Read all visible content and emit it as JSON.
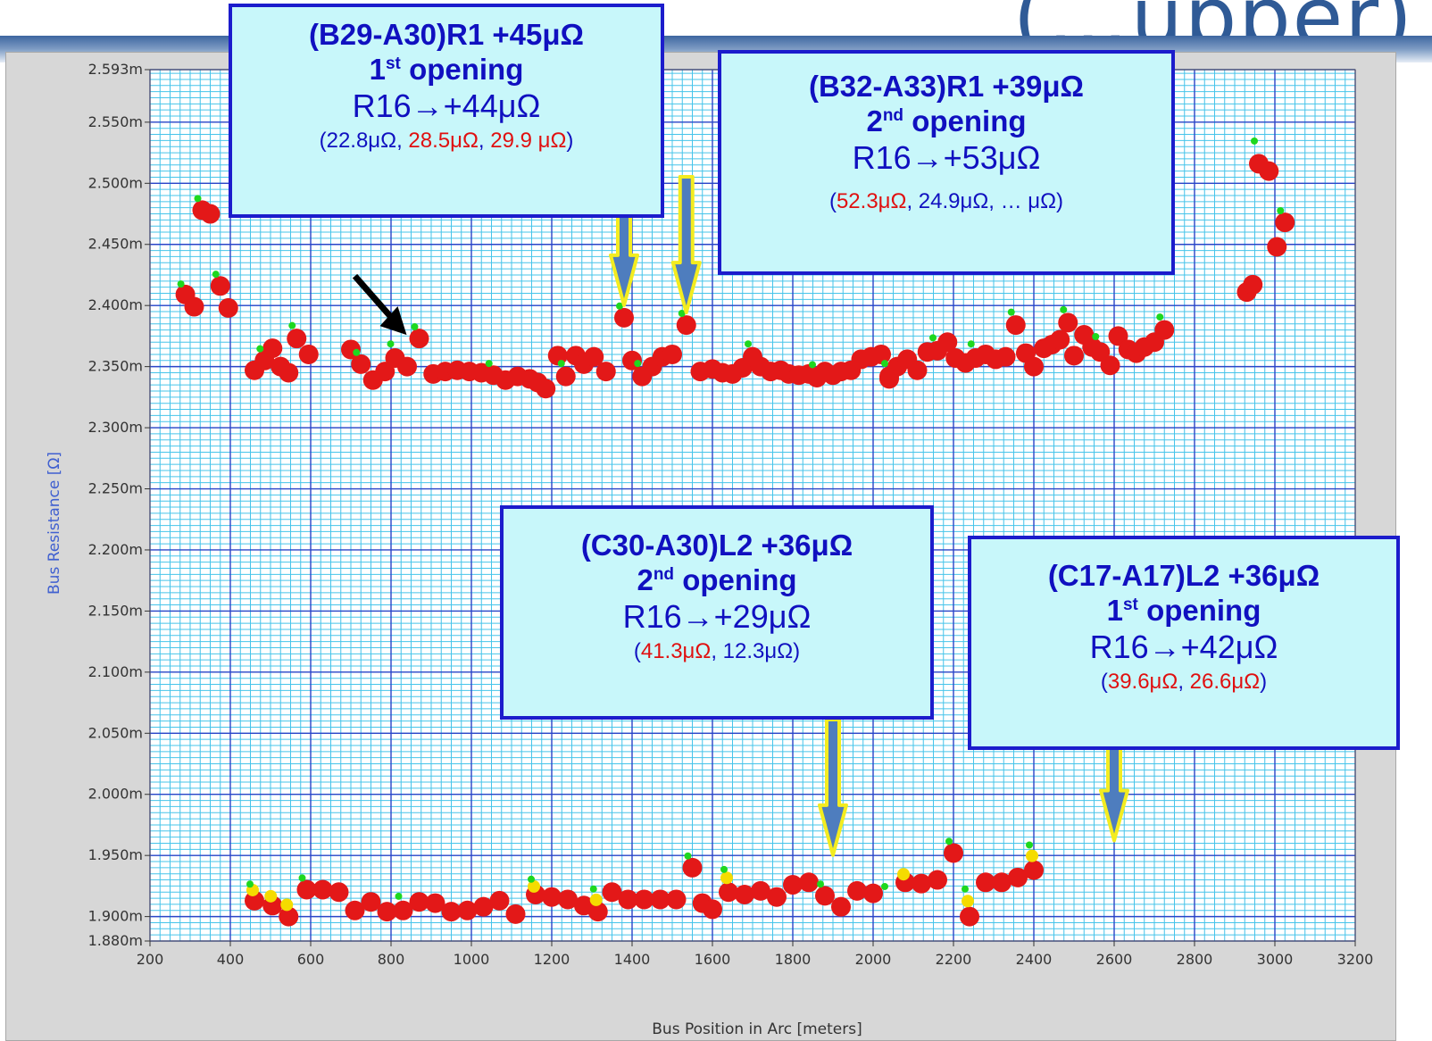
{
  "slide": {
    "title_fragment": "(…upper)"
  },
  "chart_data": {
    "type": "scatter",
    "title": "",
    "xlabel": "Bus Position in Arc [meters]",
    "ylabel": "Bus Resistance [Ω]",
    "xlim": [
      200,
      3200
    ],
    "ylim": [
      1.88,
      2.593
    ],
    "grid": true,
    "x_ticks": [
      200,
      400,
      600,
      800,
      1000,
      1200,
      1400,
      1600,
      1800,
      2000,
      2200,
      2400,
      2600,
      2800,
      3000,
      3200
    ],
    "y_ticks": [
      {
        "v": 1.88,
        "label": "1.880m"
      },
      {
        "v": 1.9,
        "label": "1.900m"
      },
      {
        "v": 1.95,
        "label": "1.950m"
      },
      {
        "v": 2.0,
        "label": "2.000m"
      },
      {
        "v": 2.05,
        "label": "2.050m"
      },
      {
        "v": 2.1,
        "label": "2.100m"
      },
      {
        "v": 2.15,
        "label": "2.150m"
      },
      {
        "v": 2.2,
        "label": "2.200m"
      },
      {
        "v": 2.25,
        "label": "2.250m"
      },
      {
        "v": 2.3,
        "label": "2.300m"
      },
      {
        "v": 2.35,
        "label": "2.350m"
      },
      {
        "v": 2.4,
        "label": "2.400m"
      },
      {
        "v": 2.45,
        "label": "2.450m"
      },
      {
        "v": 2.5,
        "label": "2.500m"
      },
      {
        "v": 2.55,
        "label": "2.550m"
      },
      {
        "v": 2.593,
        "label": "2.593m"
      }
    ],
    "series": [
      {
        "color": "#e31818",
        "points": [
          [
            288,
            2.409
          ],
          [
            310,
            2.399
          ],
          [
            330,
            2.478
          ],
          [
            350,
            2.475
          ],
          [
            375,
            2.416
          ],
          [
            395,
            2.398
          ],
          [
            460,
            2.347
          ],
          [
            485,
            2.355
          ],
          [
            505,
            2.365
          ],
          [
            525,
            2.35
          ],
          [
            545,
            2.345
          ],
          [
            565,
            2.373
          ],
          [
            595,
            2.36
          ],
          [
            700,
            2.364
          ],
          [
            725,
            2.352
          ],
          [
            755,
            2.339
          ],
          [
            785,
            2.346
          ],
          [
            810,
            2.357
          ],
          [
            840,
            2.35
          ],
          [
            870,
            2.373
          ],
          [
            905,
            2.344
          ],
          [
            935,
            2.346
          ],
          [
            965,
            2.347
          ],
          [
            995,
            2.346
          ],
          [
            1025,
            2.345
          ],
          [
            1055,
            2.343
          ],
          [
            1085,
            2.339
          ],
          [
            1115,
            2.342
          ],
          [
            1145,
            2.34
          ],
          [
            1165,
            2.337
          ],
          [
            1185,
            2.332
          ],
          [
            1215,
            2.359
          ],
          [
            1235,
            2.342
          ],
          [
            1260,
            2.359
          ],
          [
            1280,
            2.352
          ],
          [
            1305,
            2.358
          ],
          [
            1335,
            2.346
          ],
          [
            1380,
            2.39
          ],
          [
            1400,
            2.355
          ],
          [
            1425,
            2.342
          ],
          [
            1450,
            2.35
          ],
          [
            1475,
            2.358
          ],
          [
            1500,
            2.36
          ],
          [
            1535,
            2.384
          ],
          [
            1570,
            2.346
          ],
          [
            1600,
            2.348
          ],
          [
            1625,
            2.345
          ],
          [
            1650,
            2.344
          ],
          [
            1675,
            2.349
          ],
          [
            1700,
            2.358
          ],
          [
            1720,
            2.35
          ],
          [
            1745,
            2.346
          ],
          [
            1770,
            2.347
          ],
          [
            1790,
            2.344
          ],
          [
            1815,
            2.343
          ],
          [
            1840,
            2.344
          ],
          [
            1860,
            2.341
          ],
          [
            1880,
            2.346
          ],
          [
            1900,
            2.343
          ],
          [
            1920,
            2.346
          ],
          [
            1945,
            2.347
          ],
          [
            1970,
            2.356
          ],
          [
            1995,
            2.358
          ],
          [
            2020,
            2.36
          ],
          [
            2040,
            2.342
          ],
          [
            2060,
            2.35
          ],
          [
            2085,
            2.356
          ],
          [
            2110,
            2.347
          ],
          [
            2135,
            2.362
          ],
          [
            2160,
            2.363
          ],
          [
            2185,
            2.37
          ],
          [
            2205,
            2.357
          ],
          [
            2230,
            2.353
          ],
          [
            2255,
            2.357
          ],
          [
            2280,
            2.36
          ],
          [
            2305,
            2.356
          ],
          [
            2330,
            2.358
          ],
          [
            2355,
            2.384
          ],
          [
            2380,
            2.361
          ],
          [
            2400,
            2.35
          ],
          [
            2425,
            2.365
          ],
          [
            2445,
            2.368
          ],
          [
            2465,
            2.372
          ],
          [
            2485,
            2.386
          ],
          [
            2500,
            2.359
          ],
          [
            2525,
            2.376
          ],
          [
            2545,
            2.366
          ],
          [
            2565,
            2.362
          ],
          [
            2590,
            2.351
          ],
          [
            2610,
            2.375
          ],
          [
            2635,
            2.364
          ],
          [
            2655,
            2.361
          ],
          [
            2675,
            2.366
          ],
          [
            2700,
            2.37
          ],
          [
            2725,
            2.38
          ],
          [
            2930,
            2.411
          ],
          [
            2945,
            2.417
          ],
          [
            2960,
            2.516
          ],
          [
            2985,
            2.51
          ],
          [
            3005,
            2.448
          ],
          [
            3025,
            2.468
          ],
          [
            460,
            1.913
          ],
          [
            505,
            1.909
          ],
          [
            545,
            1.9
          ],
          [
            590,
            1.922
          ],
          [
            630,
            1.922
          ],
          [
            670,
            1.92
          ],
          [
            710,
            1.905
          ],
          [
            750,
            1.912
          ],
          [
            790,
            1.904
          ],
          [
            830,
            1.905
          ],
          [
            870,
            1.912
          ],
          [
            910,
            1.911
          ],
          [
            950,
            1.904
          ],
          [
            990,
            1.905
          ],
          [
            1030,
            1.908
          ],
          [
            1070,
            1.913
          ],
          [
            1110,
            1.902
          ],
          [
            1160,
            1.918
          ],
          [
            1200,
            1.916
          ],
          [
            1240,
            1.914
          ],
          [
            1280,
            1.909
          ],
          [
            1315,
            1.904
          ],
          [
            1350,
            1.92
          ],
          [
            1390,
            1.914
          ],
          [
            1430,
            1.914
          ],
          [
            1470,
            1.914
          ],
          [
            1510,
            1.914
          ],
          [
            1550,
            1.94
          ],
          [
            1575,
            1.911
          ],
          [
            1600,
            1.906
          ],
          [
            1640,
            1.92
          ],
          [
            1680,
            1.918
          ],
          [
            1720,
            1.921
          ],
          [
            1760,
            1.916
          ],
          [
            1800,
            1.926
          ],
          [
            1840,
            1.928
          ],
          [
            1880,
            1.917
          ],
          [
            1920,
            1.908
          ],
          [
            1960,
            1.921
          ],
          [
            2000,
            1.919
          ],
          [
            2040,
            2.34
          ],
          [
            2080,
            1.928
          ],
          [
            2120,
            1.927
          ],
          [
            2160,
            1.93
          ],
          [
            2200,
            1.952
          ],
          [
            2240,
            1.9
          ],
          [
            2280,
            1.928
          ],
          [
            2320,
            1.928
          ],
          [
            2360,
            1.932
          ],
          [
            2400,
            1.938
          ]
        ]
      },
      {
        "color": "#f5dc00",
        "points": [
          [
            460,
            1.918
          ],
          [
            505,
            1.913
          ],
          [
            545,
            1.906
          ],
          [
            1160,
            1.921
          ],
          [
            1315,
            1.91
          ],
          [
            1640,
            1.928
          ],
          [
            2080,
            1.931
          ],
          [
            2240,
            1.909
          ],
          [
            2400,
            1.946
          ]
        ]
      },
      {
        "color": "#1ed81e",
        "points": [
          [
            288,
            2.411
          ],
          [
            330,
            2.481
          ],
          [
            375,
            2.419
          ],
          [
            485,
            2.358
          ],
          [
            565,
            2.377
          ],
          [
            725,
            2.355
          ],
          [
            810,
            2.362
          ],
          [
            870,
            2.376
          ],
          [
            1055,
            2.346
          ],
          [
            1235,
            2.346
          ],
          [
            1380,
            2.393
          ],
          [
            1425,
            2.346
          ],
          [
            1535,
            2.387
          ],
          [
            1700,
            2.362
          ],
          [
            1860,
            2.345
          ],
          [
            2040,
            2.346
          ],
          [
            2160,
            2.367
          ],
          [
            2255,
            2.362
          ],
          [
            2355,
            2.388
          ],
          [
            2485,
            2.39
          ],
          [
            2565,
            2.368
          ],
          [
            2725,
            2.384
          ],
          [
            2960,
            2.528
          ],
          [
            3025,
            2.471
          ],
          [
            460,
            1.92
          ],
          [
            590,
            1.925
          ],
          [
            830,
            1.91
          ],
          [
            1160,
            1.924
          ],
          [
            1315,
            1.916
          ],
          [
            1550,
            1.943
          ],
          [
            1640,
            1.932
          ],
          [
            1880,
            1.92
          ],
          [
            2040,
            1.918
          ],
          [
            2200,
            1.955
          ],
          [
            2240,
            1.916
          ],
          [
            2400,
            1.952
          ]
        ]
      }
    ],
    "annotations": [
      {
        "header": "(B29-A30)R1 +45μΩ",
        "opening_num": "1",
        "opening_sup": "st",
        "opening_word": "opening",
        "r16": "R16→+44μΩ",
        "vals": [
          {
            "t": "(",
            "c": "#1010c0"
          },
          {
            "t": "22.8μΩ",
            "c": "#1010c0"
          },
          {
            "t": ", ",
            "c": "#1010c0"
          },
          {
            "t": "28.5μΩ",
            "c": "#e01010"
          },
          {
            "t": ", ",
            "c": "#1010c0"
          },
          {
            "t": "29.9 μΩ",
            "c": "#e01010"
          },
          {
            "t": ")",
            "c": "#1010c0"
          }
        ],
        "arrows": [
          [
            1380,
            2.39
          ]
        ]
      },
      {
        "header": "(B32-A33)R1 +39μΩ",
        "opening_num": "2",
        "opening_sup": "nd",
        "opening_word": "opening",
        "r16": "R16→+53μΩ",
        "vals": [
          {
            "t": "(",
            "c": "#1010c0"
          },
          {
            "t": "52.3μΩ",
            "c": "#e01010"
          },
          {
            "t": ", 24.9μΩ, … μΩ)",
            "c": "#1010c0"
          }
        ],
        "arrows": [
          [
            1535,
            2.384
          ]
        ]
      },
      {
        "header": "(C30-A30)L2 +36μΩ",
        "opening_num": "2",
        "opening_sup": "nd",
        "opening_word": "opening",
        "r16": "R16→+29μΩ",
        "vals": [
          {
            "t": "(",
            "c": "#1010c0"
          },
          {
            "t": "41.3μΩ",
            "c": "#e01010"
          },
          {
            "t": ", 12.3μΩ)",
            "c": "#1010c0"
          }
        ],
        "arrows": [
          [
            1900,
            1.94
          ]
        ]
      },
      {
        "header": "(C17-A17)L2 +36μΩ",
        "opening_num": "1",
        "opening_sup": "st",
        "opening_word": "opening",
        "r16": "R16→+42μΩ",
        "vals": [
          {
            "t": "(",
            "c": "#1010c0"
          },
          {
            "t": "39.6μΩ",
            "c": "#e01010"
          },
          {
            "t": ", ",
            "c": "#1010c0"
          },
          {
            "t": "26.6μΩ",
            "c": "#e01010"
          },
          {
            "t": ")",
            "c": "#1010c0"
          }
        ],
        "arrows": [
          [
            2600,
            1.952
          ]
        ]
      }
    ],
    "pointer_arrow_target": [
      870,
      2.373
    ]
  }
}
